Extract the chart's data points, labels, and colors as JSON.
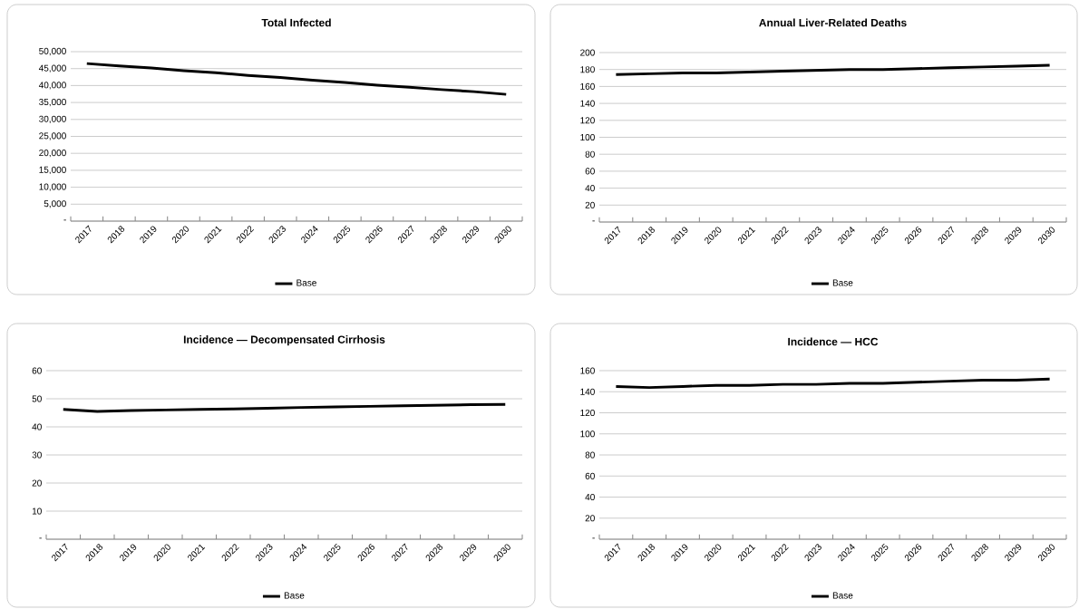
{
  "chart_data": [
    {
      "type": "line",
      "title": "Total Infected",
      "categories": [
        "2017",
        "2018",
        "2019",
        "2020",
        "2021",
        "2022",
        "2023",
        "2024",
        "2025",
        "2026",
        "2027",
        "2028",
        "2029",
        "2030"
      ],
      "series": [
        {
          "name": "Base",
          "color": "#000000",
          "values": [
            46500,
            45800,
            45200,
            44400,
            43800,
            43000,
            42400,
            41600,
            40900,
            40100,
            39500,
            38800,
            38200,
            37400
          ]
        }
      ],
      "ylim": [
        0,
        50000
      ],
      "yticks": [
        {
          "value": 0,
          "label": "-"
        },
        {
          "value": 5000,
          "label": "5,000"
        },
        {
          "value": 10000,
          "label": "10,000"
        },
        {
          "value": 15000,
          "label": "15,000"
        },
        {
          "value": 20000,
          "label": "20,000"
        },
        {
          "value": 25000,
          "label": "25,000"
        },
        {
          "value": 30000,
          "label": "30,000"
        },
        {
          "value": 35000,
          "label": "35,000"
        },
        {
          "value": 40000,
          "label": "40,000"
        },
        {
          "value": 45000,
          "label": "45,000"
        },
        {
          "value": 50000,
          "label": "50,000"
        }
      ],
      "grid": "y",
      "legend": "bottom"
    },
    {
      "type": "line",
      "title": "Annual Liver-Related Deaths",
      "categories": [
        "2017",
        "2018",
        "2019",
        "2020",
        "2021",
        "2022",
        "2023",
        "2024",
        "2025",
        "2026",
        "2027",
        "2028",
        "2029",
        "2030"
      ],
      "series": [
        {
          "name": "Base",
          "color": "#000000",
          "values": [
            174,
            175,
            176,
            176,
            177,
            178,
            179,
            180,
            180,
            181,
            182,
            183,
            184,
            185
          ]
        }
      ],
      "ylim": [
        0,
        200
      ],
      "yticks": [
        {
          "value": 0,
          "label": "-"
        },
        20,
        40,
        60,
        80,
        100,
        120,
        140,
        160,
        180,
        200
      ],
      "grid": "y",
      "legend": "bottom"
    },
    {
      "type": "line",
      "title": "Incidence — Decompensated Cirrhosis",
      "categories": [
        "2017",
        "2018",
        "2019",
        "2020",
        "2021",
        "2022",
        "2023",
        "2024",
        "2025",
        "2026",
        "2027",
        "2028",
        "2029",
        "2030"
      ],
      "series": [
        {
          "name": "Base",
          "color": "#000000",
          "values": [
            46.2,
            45.5,
            45.8,
            46.0,
            46.2,
            46.4,
            46.6,
            46.9,
            47.1,
            47.3,
            47.5,
            47.7,
            47.9,
            48.0
          ]
        }
      ],
      "ylim": [
        0,
        60
      ],
      "yticks": [
        {
          "value": 0,
          "label": "-"
        },
        10,
        20,
        30,
        40,
        50,
        60
      ],
      "grid": "y",
      "legend": "bottom"
    },
    {
      "type": "line",
      "title": "Incidence — HCC",
      "categories": [
        "2017",
        "2018",
        "2019",
        "2020",
        "2021",
        "2022",
        "2023",
        "2024",
        "2025",
        "2026",
        "2027",
        "2028",
        "2029",
        "2030"
      ],
      "series": [
        {
          "name": "Base",
          "color": "#000000",
          "values": [
            145,
            144,
            145,
            146,
            146,
            147,
            147,
            148,
            148,
            149,
            150,
            151,
            151,
            152
          ]
        }
      ],
      "ylim": [
        0,
        160
      ],
      "yticks": [
        {
          "value": 0,
          "label": "-"
        },
        20,
        40,
        60,
        80,
        100,
        120,
        140,
        160
      ],
      "grid": "y",
      "legend": "bottom"
    }
  ]
}
